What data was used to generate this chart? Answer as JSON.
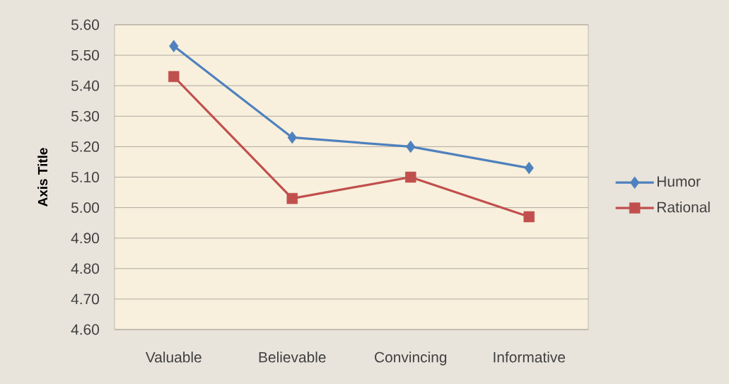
{
  "chart_data": {
    "type": "line",
    "ylabel": "Axis Title",
    "categories": [
      "Valuable",
      "Believable",
      "Convincing",
      "Informative"
    ],
    "series": [
      {
        "name": "Humor",
        "color": "#4f81bd",
        "marker": "diamond",
        "values": [
          5.53,
          5.23,
          5.2,
          5.13
        ]
      },
      {
        "name": "Rational",
        "color": "#c0504d",
        "marker": "square",
        "values": [
          5.43,
          5.03,
          5.1,
          4.97
        ]
      }
    ],
    "ylim": [
      4.6,
      5.6
    ],
    "yticks": [
      {
        "value": 4.6,
        "label": "4.60"
      },
      {
        "value": 4.7,
        "label": "4.70"
      },
      {
        "value": 4.8,
        "label": "4.80"
      },
      {
        "value": 4.9,
        "label": "4.90"
      },
      {
        "value": 5.0,
        "label": "5.00"
      },
      {
        "value": 5.1,
        "label": "5.10"
      },
      {
        "value": 5.2,
        "label": "5.20"
      },
      {
        "value": 5.3,
        "label": "5.30"
      },
      {
        "value": 5.4,
        "label": "5.40"
      },
      {
        "value": 5.5,
        "label": "5.50"
      },
      {
        "value": 5.6,
        "label": "5.60"
      }
    ],
    "grid": "y",
    "legend": "right"
  }
}
